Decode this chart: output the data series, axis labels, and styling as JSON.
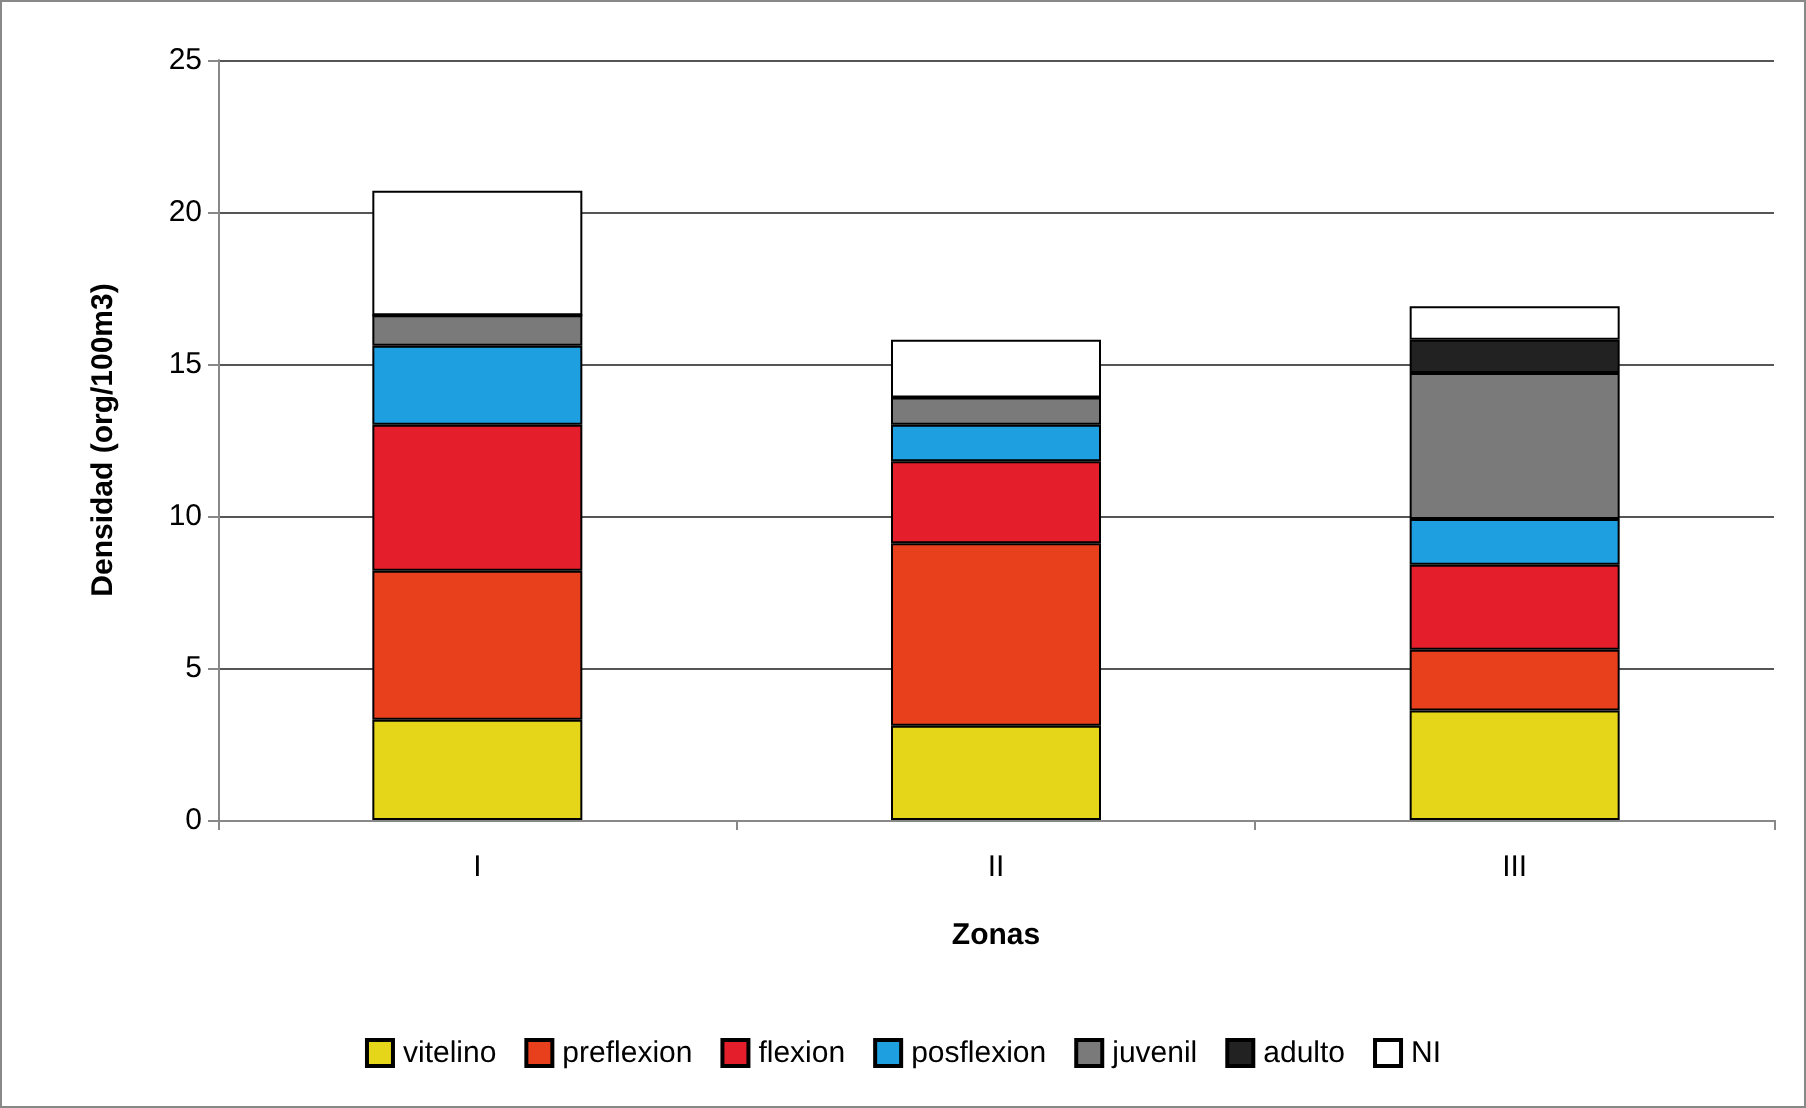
{
  "chart_data": {
    "type": "bar",
    "stacked": true,
    "xlabel": "Zonas",
    "ylabel": "Densidad (org/100m3)",
    "categories": [
      "I",
      "II",
      "III"
    ],
    "series": [
      {
        "name": "vitelino",
        "color": "#e6d619",
        "values": [
          3.3,
          3.1,
          3.6
        ]
      },
      {
        "name": "preflexion",
        "color": "#e8401c",
        "values": [
          4.9,
          6.0,
          2.0
        ]
      },
      {
        "name": "flexion",
        "color": "#e41e2a",
        "values": [
          4.8,
          2.7,
          2.8
        ]
      },
      {
        "name": "posflexion",
        "color": "#1e9fe0",
        "values": [
          2.6,
          1.2,
          1.5
        ]
      },
      {
        "name": "juvenil",
        "color": "#7a7a7a",
        "values": [
          1.0,
          0.9,
          4.8
        ]
      },
      {
        "name": "adulto",
        "color": "#222222",
        "values": [
          0,
          0,
          1.1
        ]
      },
      {
        "name": "NI",
        "color": "#ffffff",
        "values": [
          4.1,
          1.9,
          1.1
        ]
      }
    ],
    "ylim": [
      0,
      25
    ],
    "yticks": [
      0,
      5,
      10,
      15,
      20,
      25
    ],
    "grid": "y",
    "legend": "bottom"
  }
}
